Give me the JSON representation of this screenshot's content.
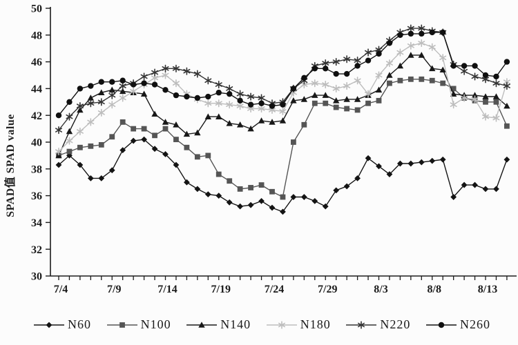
{
  "chart_data": {
    "type": "line",
    "title": "",
    "xlabel": "",
    "ylabel": "SPAD值 SPAD value",
    "ylim": [
      30,
      50
    ],
    "ytick_step": 2,
    "grid": false,
    "legend_position": "bottom",
    "xtick_labels": [
      "7/4",
      "7/9",
      "7/14",
      "7/19",
      "7/24",
      "7/29",
      "8/3",
      "8/8",
      "8/13"
    ],
    "xtick_every": 5,
    "x": [
      "7/4",
      "7/5",
      "7/6",
      "7/7",
      "7/8",
      "7/9",
      "7/10",
      "7/11",
      "7/12",
      "7/13",
      "7/14",
      "7/15",
      "7/16",
      "7/17",
      "7/18",
      "7/19",
      "7/20",
      "7/21",
      "7/22",
      "7/23",
      "7/24",
      "7/25",
      "7/26",
      "7/27",
      "7/28",
      "7/29",
      "7/30",
      "7/31",
      "8/1",
      "8/2",
      "8/3",
      "8/4",
      "8/5",
      "8/6",
      "8/7",
      "8/8",
      "8/9",
      "8/10",
      "8/11",
      "8/12",
      "8/13",
      "8/14",
      "8/15"
    ],
    "series": [
      {
        "name": "N60",
        "marker": "diamond",
        "color": "#141414",
        "values": [
          38.3,
          39.0,
          38.3,
          37.3,
          37.3,
          37.9,
          39.4,
          40.1,
          40.2,
          39.5,
          39.1,
          38.3,
          37.0,
          36.5,
          36.1,
          36.0,
          35.5,
          35.2,
          35.3,
          35.6,
          35.1,
          34.8,
          35.9,
          35.9,
          35.6,
          35.2,
          36.4,
          36.7,
          37.3,
          38.8,
          38.2,
          37.6,
          38.4,
          38.4,
          38.5,
          38.6,
          38.7,
          35.9,
          36.8,
          36.8,
          36.5,
          36.5,
          38.7
        ]
      },
      {
        "name": "N100",
        "marker": "square",
        "color": "#555555",
        "values": [
          39.0,
          39.3,
          39.6,
          39.7,
          39.8,
          40.4,
          41.5,
          41.0,
          41.0,
          40.5,
          41.0,
          40.2,
          39.6,
          38.9,
          39.0,
          37.6,
          37.1,
          36.5,
          36.6,
          36.8,
          36.3,
          35.9,
          40.0,
          41.3,
          42.9,
          42.9,
          42.6,
          42.5,
          42.4,
          42.9,
          43.1,
          44.4,
          44.6,
          44.7,
          44.7,
          44.6,
          44.4,
          44.0,
          43.3,
          43.1,
          43.0,
          43.0,
          41.2
        ]
      },
      {
        "name": "N140",
        "marker": "triangle",
        "color": "#181818",
        "values": [
          39.0,
          40.8,
          42.4,
          43.3,
          43.7,
          43.9,
          43.8,
          43.7,
          43.6,
          42.1,
          41.5,
          41.3,
          40.6,
          40.7,
          41.9,
          41.9,
          41.4,
          41.3,
          41.0,
          41.6,
          41.5,
          41.6,
          43.1,
          43.2,
          43.5,
          43.5,
          43.1,
          43.2,
          43.2,
          43.5,
          43.9,
          45.0,
          45.7,
          46.5,
          46.5,
          45.5,
          45.4,
          43.6,
          43.5,
          43.5,
          43.4,
          43.4,
          42.7
        ]
      },
      {
        "name": "N180",
        "marker": "star",
        "color": "#bdbdbd",
        "values": [
          39.3,
          40.1,
          40.8,
          41.5,
          42.2,
          42.8,
          43.3,
          43.8,
          44.3,
          44.8,
          45.0,
          44.4,
          43.6,
          43.2,
          42.9,
          42.9,
          42.8,
          42.7,
          42.5,
          42.5,
          42.4,
          42.3,
          43.7,
          44.3,
          44.4,
          44.3,
          44.0,
          44.2,
          44.6,
          43.6,
          45.0,
          45.9,
          46.7,
          47.2,
          47.4,
          47.1,
          46.3,
          42.8,
          43.3,
          43.2,
          41.9,
          41.8,
          44.5
        ]
      },
      {
        "name": "N220",
        "marker": "asterisk",
        "color": "#333333",
        "values": [
          40.9,
          41.9,
          42.7,
          42.9,
          43.0,
          43.5,
          44.2,
          44.4,
          44.9,
          45.2,
          45.5,
          45.5,
          45.3,
          45.1,
          44.6,
          44.3,
          44.0,
          43.6,
          43.4,
          43.3,
          42.9,
          43.0,
          44.0,
          44.6,
          45.7,
          45.9,
          46.0,
          46.2,
          46.1,
          46.7,
          46.9,
          47.6,
          48.2,
          48.5,
          48.5,
          48.3,
          48.2,
          45.8,
          45.3,
          44.9,
          44.7,
          44.4,
          44.2
        ]
      },
      {
        "name": "N260",
        "marker": "circle",
        "color": "#101010",
        "values": [
          42.0,
          43.0,
          44.0,
          44.2,
          44.5,
          44.5,
          44.6,
          44.3,
          44.4,
          44.3,
          43.9,
          43.5,
          43.4,
          43.3,
          43.4,
          43.7,
          43.6,
          43.1,
          42.8,
          42.9,
          42.7,
          42.8,
          44.0,
          44.8,
          45.5,
          45.5,
          45.1,
          45.1,
          45.7,
          46.1,
          46.6,
          47.4,
          48.0,
          48.1,
          48.1,
          48.2,
          48.2,
          45.7,
          45.7,
          45.7,
          45.0,
          44.9,
          46.0
        ]
      }
    ]
  }
}
